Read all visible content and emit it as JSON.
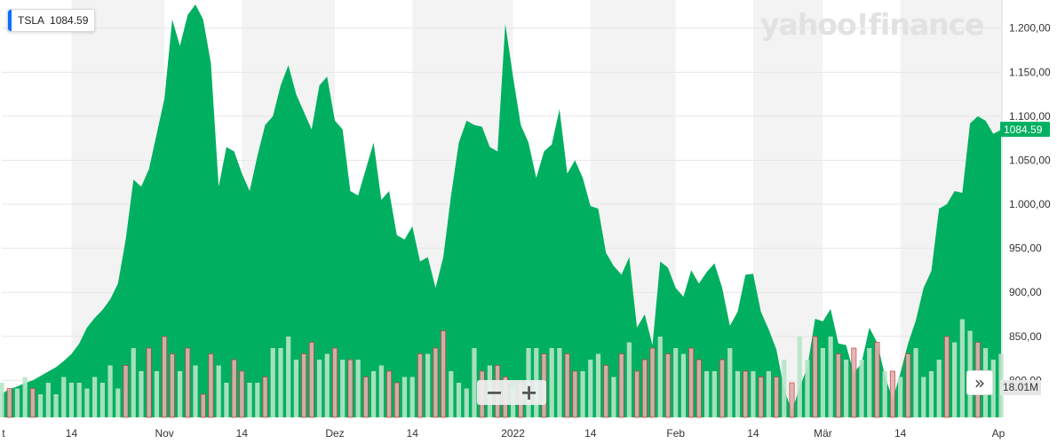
{
  "ticker": {
    "symbol": "TSLA",
    "price": "1084.59",
    "swatch_color": "#0d6efd"
  },
  "watermark": "yahoo!finance",
  "badges": {
    "price": "1084.59",
    "volume": "18.01M"
  },
  "controls": {
    "zoom_out": "−",
    "zoom_in": "+",
    "expand": "»"
  },
  "colors": {
    "area": "#00b060",
    "volume_up": "#b7e6c8",
    "volume_down": "#e0b0b0",
    "volume_down_outline": "#c9423d",
    "band": "#f3f3f3"
  },
  "chart_data": {
    "type": "area",
    "ylim": [
      760,
      1230
    ],
    "y_ticks": [
      {
        "value": 800,
        "label": "800,00"
      },
      {
        "value": 850,
        "label": "850,00"
      },
      {
        "value": 900,
        "label": "900,00"
      },
      {
        "value": 950,
        "label": "950,00"
      },
      {
        "value": 1000,
        "label": "1.000,00"
      },
      {
        "value": 1050,
        "label": "1.050,00"
      },
      {
        "value": 1100,
        "label": "1.100,00"
      },
      {
        "value": 1150,
        "label": "1.150,00"
      },
      {
        "value": 1200,
        "label": "1.200,00"
      }
    ],
    "x_labels": [
      {
        "label": "t",
        "index": 0
      },
      {
        "label": "14",
        "index": 9
      },
      {
        "label": "Nov",
        "index": 21
      },
      {
        "label": "14",
        "index": 31
      },
      {
        "label": "Dez",
        "index": 43
      },
      {
        "label": "14",
        "index": 53
      },
      {
        "label": "2022",
        "index": 66
      },
      {
        "label": "14",
        "index": 76
      },
      {
        "label": "Feb",
        "index": 87
      },
      {
        "label": "14",
        "index": 97
      },
      {
        "label": "Mär",
        "index": 106
      },
      {
        "label": "14",
        "index": 116
      },
      {
        "label": "Ap",
        "index": 129
      }
    ],
    "month_bands": [
      [
        9,
        21
      ],
      [
        31,
        43
      ],
      [
        53,
        66
      ],
      [
        76,
        87
      ],
      [
        97,
        106
      ],
      [
        116,
        129
      ]
    ],
    "price": [
      785,
      790,
      793,
      797,
      800,
      805,
      810,
      815,
      822,
      830,
      842,
      860,
      871,
      880,
      892,
      910,
      960,
      1028,
      1020,
      1040,
      1080,
      1120,
      1210,
      1180,
      1215,
      1227,
      1210,
      1160,
      1020,
      1065,
      1060,
      1035,
      1015,
      1055,
      1090,
      1100,
      1135,
      1158,
      1125,
      1105,
      1085,
      1135,
      1145,
      1095,
      1085,
      1015,
      1010,
      1040,
      1070,
      1005,
      1015,
      965,
      960,
      975,
      935,
      940,
      905,
      940,
      1010,
      1070,
      1095,
      1090,
      1088,
      1065,
      1060,
      1205,
      1145,
      1090,
      1070,
      1030,
      1060,
      1068,
      1108,
      1035,
      1050,
      1030,
      998,
      995,
      945,
      930,
      920,
      940,
      860,
      875,
      840,
      935,
      928,
      905,
      895,
      925,
      910,
      923,
      933,
      905,
      862,
      878,
      920,
      921,
      878,
      858,
      835,
      790,
      765,
      792,
      815,
      870,
      867,
      881,
      842,
      840,
      808,
      820,
      860,
      843,
      806,
      778,
      808,
      842,
      868,
      905,
      924,
      995,
      1000,
      1015,
      1013,
      1092,
      1100,
      1095,
      1080,
      1084.59
    ],
    "volume": [
      6,
      5,
      5,
      7,
      5,
      4,
      6,
      4,
      7,
      6,
      6,
      5,
      7,
      6,
      9,
      5,
      9,
      12,
      8,
      12,
      8,
      14,
      11,
      8,
      12,
      9,
      4,
      11,
      9,
      6,
      10,
      8,
      6,
      6,
      7,
      12,
      12,
      14,
      10,
      11,
      13,
      10,
      11,
      12,
      10,
      10,
      10,
      7,
      8,
      9,
      8,
      6,
      7,
      7,
      11,
      11,
      12,
      15,
      8,
      6,
      5,
      12,
      8,
      9,
      9,
      7,
      5,
      6,
      12,
      12,
      11,
      12,
      12,
      11,
      8,
      8,
      10,
      11,
      9,
      7,
      11,
      13,
      8,
      10,
      12,
      14,
      11,
      12,
      11,
      12,
      10,
      8,
      8,
      10,
      12,
      8,
      8,
      8,
      7,
      8,
      7,
      10,
      6,
      14,
      10,
      14,
      12,
      14,
      11,
      10,
      12,
      10,
      12,
      13,
      8,
      8,
      7,
      11,
      12,
      7,
      8,
      10,
      14,
      13,
      17,
      15,
      13,
      12,
      10,
      11
    ],
    "volume_down": [
      1,
      4,
      16,
      19,
      21,
      22,
      24,
      26,
      27,
      30,
      31,
      34,
      39,
      40,
      43,
      45,
      47,
      50,
      51,
      54,
      56,
      57,
      62,
      64,
      65,
      67,
      70,
      73,
      74,
      78,
      80,
      82,
      83,
      84,
      86,
      89,
      90,
      93,
      96,
      98,
      100,
      102,
      105,
      108,
      110,
      113,
      115,
      117,
      122,
      126
    ]
  }
}
